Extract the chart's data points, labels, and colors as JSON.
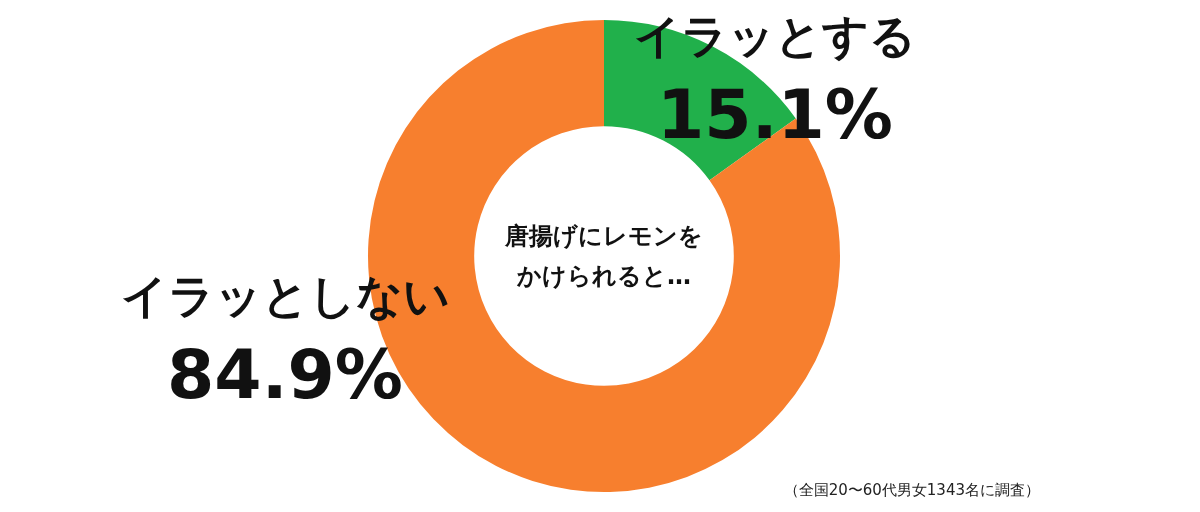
{
  "chart_data": {
    "type": "donut",
    "title": "唐揚げにレモンをかけられると…",
    "categories": [
      "イラッとする",
      "イラッとしない"
    ],
    "values": [
      15.1,
      84.9
    ],
    "colors": [
      "#21b04b",
      "#f77f2e"
    ],
    "value_labels": [
      "15.1%",
      "84.9%"
    ],
    "legend": false,
    "annotations": [
      "（全国20〜60代男女1343名に調査）"
    ]
  }
}
